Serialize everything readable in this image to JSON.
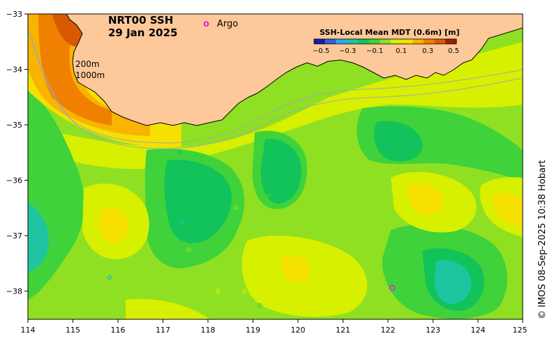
{
  "map": {
    "title_line1": "NRT00 SSH",
    "title_line2": "29 Jan 2025",
    "isobath_labels": [
      "200m",
      "1000m"
    ],
    "argo_legend_symbol": "o",
    "argo_legend_label": "Argo",
    "credit": "© IMOS 08-Sep-2025 10:38 Hobart",
    "lon_ticks": [
      "114",
      "115",
      "116",
      "117",
      "118",
      "119",
      "120",
      "121",
      "122",
      "123",
      "124",
      "125"
    ],
    "lat_ticks": [
      "−33",
      "−34",
      "−35",
      "−36",
      "−37",
      "−38"
    ],
    "colorbar": {
      "title": "SSH-Local Mean MDT (0.6m) [m]",
      "ticks": [
        "−0.5",
        "−0.3",
        "−0.1",
        "0.1",
        "0.3",
        "0.5"
      ],
      "colors": [
        "#1a1aa8",
        "#2a62d8",
        "#2fa8e8",
        "#1fc4a0",
        "#12c25a",
        "#3fd23a",
        "#8fe022",
        "#d6f000",
        "#f5e000",
        "#f8b400",
        "#f08000",
        "#d85a00",
        "#a01e00"
      ]
    },
    "colors": {
      "land": "#fdc99a",
      "coastline": "#000000",
      "isobath": "#a8a8a8",
      "argo": "#e020e0"
    }
  }
}
